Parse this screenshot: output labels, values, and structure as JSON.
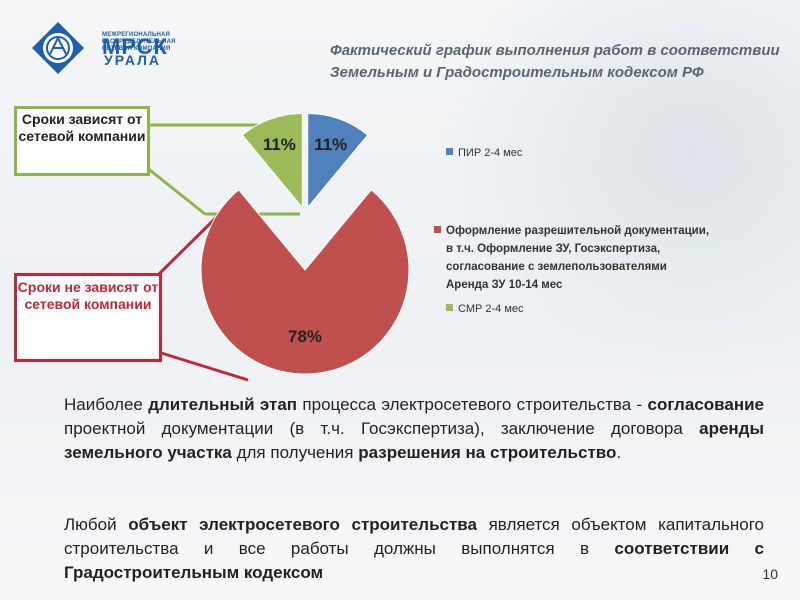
{
  "colors": {
    "pir": "#4f81bd",
    "docs": "#c0504d",
    "smr": "#9bbb59",
    "brand": "#1f5ea8",
    "callout_green": "#8ab64a",
    "callout_red": "#c0283a"
  },
  "logo": {
    "small_text": "МЕЖРЕГИОНАЛЬНАЯ РАСПРЕДЕЛИТЕЛЬНАЯ СЕТЕВАЯ КОМПАНИЯ",
    "name": "МРСК",
    "region": "УРАЛА",
    "icon": "grid-emblem-icon"
  },
  "title": {
    "line1": "Фактический график выполнения работ в соответствии",
    "line2": "Земельным и Градостроительным кодексом РФ"
  },
  "callouts": {
    "depends": "Сроки зависят от сетевой компании",
    "not_depends": "Сроки не зависят от сетевой компании"
  },
  "chart_data": {
    "type": "pie",
    "slices": [
      {
        "name": "ПИР 2-4 мес",
        "value": 11,
        "label": "11%"
      },
      {
        "name": "Оформление разрешительной документации, в т.ч. Оформление ЗУ, Госэкспертиза, согласование с землепользователями Аренда ЗУ 10-14 мес",
        "value": 78,
        "label": "78%"
      },
      {
        "name": "СМР 2-4 мес",
        "value": 11,
        "label": "11%"
      }
    ],
    "legend_position": "right",
    "exploded": true
  },
  "legend": {
    "pir": "ПИР 2-4 мес",
    "docs_lines": [
      "Оформление разрешительной документации,",
      "в т.ч. Оформление ЗУ, Госэкспертиза,",
      "согласование с землепользователями",
      "Аренда ЗУ 10-14 мес"
    ],
    "smr": "СМР 2-4 мес"
  },
  "paragraphs": {
    "p1": {
      "s1": "Наиболее ",
      "b1": "длительный этап",
      "s2": " процесса электросетевого строительства - ",
      "b2": "согласование",
      "s3": " проектной документации (в т.ч. Госэкспертиза), заключение договора ",
      "b3": "аренды земельного участка",
      "s4": " для получения ",
      "b4": "разрешения на строительство",
      "s5": "."
    },
    "p2": {
      "s1": "Любой ",
      "b1": "объект электросетевого строительства",
      "s2": "  является объектом капитального строительства и все работы должны выполнятся в ",
      "b2": "соответствии с Градостроительным кодексом"
    }
  },
  "page_number": "10"
}
